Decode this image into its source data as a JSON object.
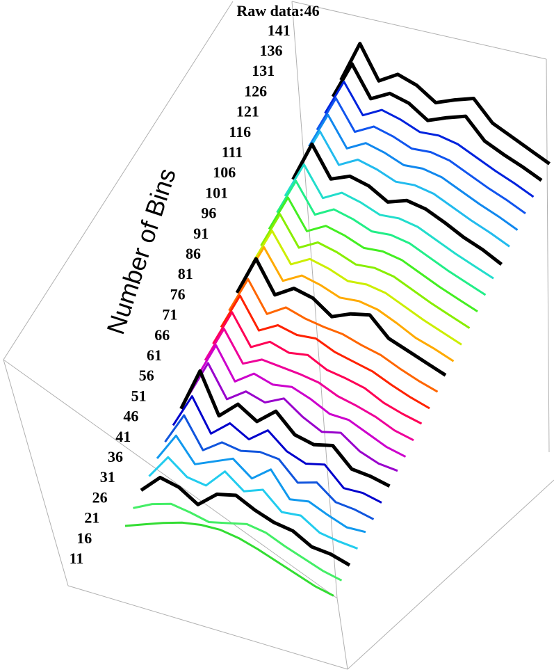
{
  "chart_data": {
    "type": "waterfall3d",
    "axis_label": "Number of Bins",
    "series": [
      {
        "name": 11,
        "color": "#33dd33",
        "values": [
          10,
          22,
          34,
          44,
          50,
          52,
          48,
          40,
          30,
          20,
          10,
          4
        ]
      },
      {
        "name": 16,
        "color": "#44ee66",
        "values": [
          14,
          30,
          40,
          36,
          30,
          38,
          46,
          42,
          30,
          20,
          10,
          4
        ]
      },
      {
        "name": 21,
        "color": "#000000",
        "values": [
          18,
          48,
          42,
          24,
          50,
          58,
          44,
          34,
          30,
          14,
          12,
          4
        ]
      },
      {
        "name": 26,
        "color": "#22ccee",
        "values": [
          16,
          56,
          34,
          30,
          62,
          40,
          52,
          26,
          30,
          12,
          8,
          6
        ]
      },
      {
        "name": 31,
        "color": "#1199ee",
        "values": [
          20,
          66,
          30,
          44,
          58,
          36,
          60,
          22,
          28,
          16,
          6,
          8
        ]
      },
      {
        "name": 36,
        "color": "#1155dd",
        "values": [
          22,
          74,
          28,
          50,
          46,
          54,
          52,
          24,
          34,
          12,
          10,
          4
        ]
      },
      {
        "name": 41,
        "color": "#0000cc",
        "values": [
          24,
          80,
          30,
          56,
          40,
          64,
          40,
          30,
          38,
          10,
          12,
          6
        ]
      },
      {
        "name": 46,
        "color": "#000000",
        "values": [
          26,
          96,
          34,
          62,
          44,
          70,
          42,
          36,
          44,
          16,
          14,
          8
        ]
      },
      {
        "name": 51,
        "color": "#9900cc",
        "values": [
          24,
          84,
          36,
          58,
          50,
          66,
          46,
          32,
          40,
          20,
          10,
          8
        ]
      },
      {
        "name": 56,
        "color": "#cc00cc",
        "values": [
          28,
          88,
          40,
          62,
          54,
          60,
          50,
          36,
          36,
          24,
          12,
          6
        ]
      },
      {
        "name": 61,
        "color": "#ee0099",
        "values": [
          30,
          90,
          44,
          60,
          58,
          56,
          52,
          40,
          34,
          26,
          14,
          8
        ]
      },
      {
        "name": 66,
        "color": "#ff0055",
        "values": [
          32,
          92,
          46,
          64,
          56,
          62,
          48,
          44,
          38,
          24,
          16,
          10
        ]
      },
      {
        "name": 71,
        "color": "#ff2200",
        "values": [
          34,
          94,
          48,
          66,
          60,
          64,
          52,
          46,
          40,
          28,
          18,
          10
        ]
      },
      {
        "name": 76,
        "color": "#ff6600",
        "values": [
          36,
          96,
          50,
          70,
          62,
          58,
          56,
          48,
          42,
          30,
          20,
          12
        ]
      },
      {
        "name": 81,
        "color": "#000000",
        "values": [
          40,
          104,
          56,
          76,
          70,
          50,
          64,
          72,
          44,
          34,
          24,
          14
        ]
      },
      {
        "name": 86,
        "color": "#ffaa00",
        "values": [
          38,
          98,
          54,
          72,
          66,
          56,
          60,
          56,
          44,
          30,
          22,
          12
        ]
      },
      {
        "name": 91,
        "color": "#ccee00",
        "values": [
          40,
          100,
          56,
          74,
          68,
          58,
          62,
          58,
          46,
          34,
          24,
          14
        ]
      },
      {
        "name": 96,
        "color": "#88ee00",
        "values": [
          42,
          102,
          58,
          76,
          70,
          60,
          64,
          60,
          48,
          36,
          26,
          16
        ]
      },
      {
        "name": 101,
        "color": "#44ee22",
        "values": [
          44,
          104,
          60,
          78,
          72,
          62,
          66,
          62,
          50,
          38,
          28,
          18
        ]
      },
      {
        "name": 106,
        "color": "#22ee88",
        "values": [
          46,
          106,
          62,
          80,
          74,
          64,
          68,
          64,
          52,
          40,
          30,
          20
        ]
      },
      {
        "name": 111,
        "color": "#22ddcc",
        "values": [
          48,
          108,
          64,
          82,
          76,
          66,
          70,
          66,
          54,
          42,
          32,
          22
        ]
      },
      {
        "name": 116,
        "color": "#000000",
        "values": [
          50,
          116,
          70,
          84,
          78,
          62,
          74,
          70,
          58,
          44,
          34,
          20
        ]
      },
      {
        "name": 121,
        "color": "#22bbee",
        "values": [
          52,
          112,
          68,
          86,
          80,
          70,
          74,
          70,
          58,
          46,
          36,
          24
        ]
      },
      {
        "name": 126,
        "color": "#1188ee",
        "values": [
          54,
          114,
          70,
          88,
          82,
          72,
          76,
          72,
          60,
          48,
          38,
          26
        ]
      },
      {
        "name": 131,
        "color": "#1155ee",
        "values": [
          56,
          116,
          72,
          90,
          84,
          74,
          78,
          74,
          62,
          50,
          40,
          28
        ]
      },
      {
        "name": 136,
        "color": "#0022dd",
        "values": [
          58,
          118,
          74,
          92,
          86,
          76,
          80,
          76,
          64,
          52,
          42,
          30
        ]
      },
      {
        "name": 141,
        "color": "#000000",
        "values": [
          60,
          122,
          76,
          94,
          88,
          70,
          84,
          96,
          66,
          54,
          44,
          32
        ]
      },
      {
        "name": "Raw data:46",
        "color": "#000000",
        "values": [
          62,
          130,
          80,
          100,
          92,
          74,
          88,
          100,
          70,
          58,
          46,
          34
        ]
      }
    ]
  }
}
